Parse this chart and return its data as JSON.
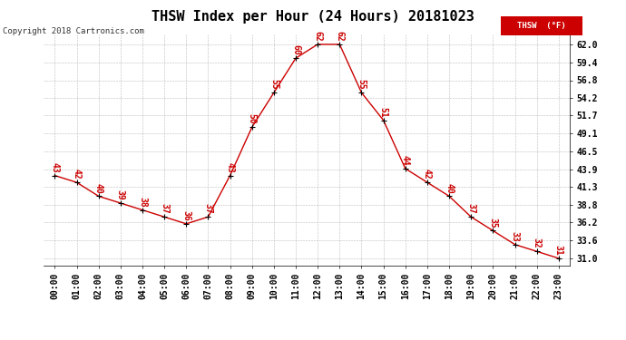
{
  "title": "THSW Index per Hour (24 Hours) 20181023",
  "copyright": "Copyright 2018 Cartronics.com",
  "legend_label": "THSW  (°F)",
  "hours": [
    0,
    1,
    2,
    3,
    4,
    5,
    6,
    7,
    8,
    9,
    10,
    11,
    12,
    13,
    14,
    15,
    16,
    17,
    18,
    19,
    20,
    21,
    22,
    23
  ],
  "values": [
    43,
    42,
    40,
    39,
    38,
    37,
    36,
    37,
    43,
    50,
    55,
    60,
    62,
    62,
    55,
    51,
    44,
    42,
    40,
    37,
    35,
    33,
    32,
    31
  ],
  "x_labels": [
    "00:00",
    "01:00",
    "02:00",
    "03:00",
    "04:00",
    "05:00",
    "06:00",
    "07:00",
    "08:00",
    "09:00",
    "10:00",
    "11:00",
    "12:00",
    "13:00",
    "14:00",
    "15:00",
    "16:00",
    "17:00",
    "18:00",
    "19:00",
    "20:00",
    "21:00",
    "22:00",
    "23:00"
  ],
  "y_ticks": [
    31.0,
    33.6,
    36.2,
    38.8,
    41.3,
    43.9,
    46.5,
    49.1,
    51.7,
    54.2,
    56.8,
    59.4,
    62.0
  ],
  "ylim": [
    30.0,
    63.5
  ],
  "xlim": [
    -0.5,
    23.5
  ],
  "line_color": "#cc0000",
  "marker_color": "#000000",
  "label_color": "#cc0000",
  "grid_color": "#bbbbbb",
  "bg_color": "#ffffff",
  "legend_bg": "#cc0000",
  "legend_text_color": "#ffffff",
  "title_fontsize": 11,
  "label_fontsize": 7,
  "tick_fontsize": 7,
  "copyright_fontsize": 6.5
}
